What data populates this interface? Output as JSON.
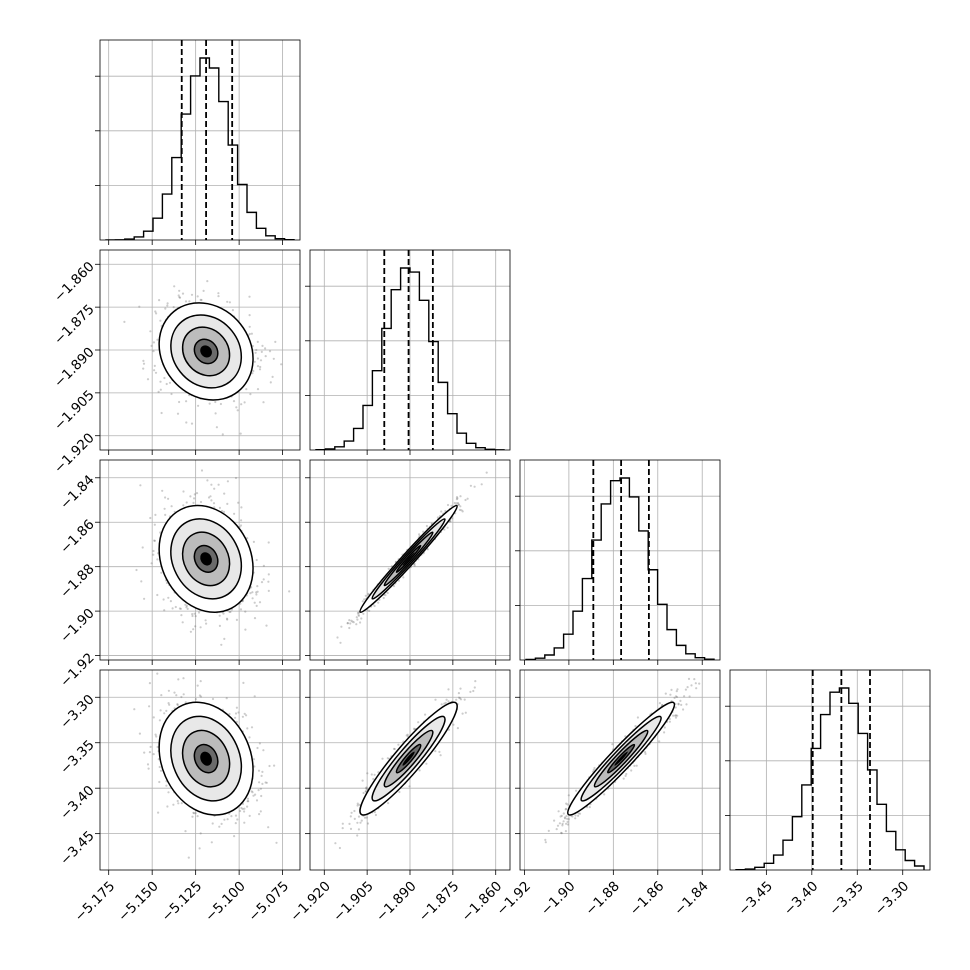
{
  "chart_data": {
    "type": "corner",
    "params": [
      {
        "mean": -5.119,
        "std": 0.0135,
        "range": [
          -5.18,
          -5.065
        ],
        "ticks": [
          "−5.175",
          "−5.150",
          "−5.125",
          "−5.100",
          "−5.075"
        ],
        "tick_values": [
          -5.175,
          -5.15,
          -5.125,
          -5.1,
          -5.075
        ],
        "quantiles": [
          -5.133,
          -5.119,
          -5.104
        ]
      },
      {
        "mean": -1.8905,
        "std": 0.0085,
        "range": [
          -1.925,
          -1.855
        ],
        "ticks": [
          "−1.920",
          "−1.905",
          "−1.890",
          "−1.875",
          "−1.860"
        ],
        "tick_values": [
          -1.92,
          -1.905,
          -1.89,
          -1.875,
          -1.86
        ],
        "quantiles": [
          -1.899,
          -1.8905,
          -1.882
        ]
      },
      {
        "mean": -1.8765,
        "std": 0.012,
        "range": [
          -1.922,
          -1.832
        ],
        "ticks": [
          "−1.92",
          "−1.90",
          "−1.88",
          "−1.86",
          "−1.84"
        ],
        "tick_values": [
          -1.92,
          -1.9,
          -1.88,
          -1.86,
          -1.84
        ],
        "quantiles": [
          -1.889,
          -1.8765,
          -1.864
        ]
      },
      {
        "mean": -3.3675,
        "std": 0.031,
        "range": [
          -3.49,
          -3.27
        ],
        "ticks": [
          "−3.45",
          "−3.40",
          "−3.35",
          "−3.30"
        ],
        "tick_values": [
          -3.45,
          -3.4,
          -3.35,
          -3.3
        ],
        "quantiles": [
          -3.399,
          -3.3675,
          -3.336
        ]
      }
    ],
    "correlations": [
      [
        1.0,
        -0.15,
        -0.18,
        -0.2
      ],
      [
        -0.15,
        1.0,
        0.985,
        0.93
      ],
      [
        -0.18,
        0.985,
        1.0,
        0.96
      ],
      [
        -0.2,
        0.93,
        0.96,
        1.0
      ]
    ],
    "histogram_bins": 20,
    "contour_levels_sigma": [
      0.5,
      1.0,
      1.5,
      2.0
    ],
    "colors": {
      "line": "#000000",
      "grid": "#b0b0b0",
      "points": "#6e6e6e",
      "density": "#000000"
    }
  }
}
